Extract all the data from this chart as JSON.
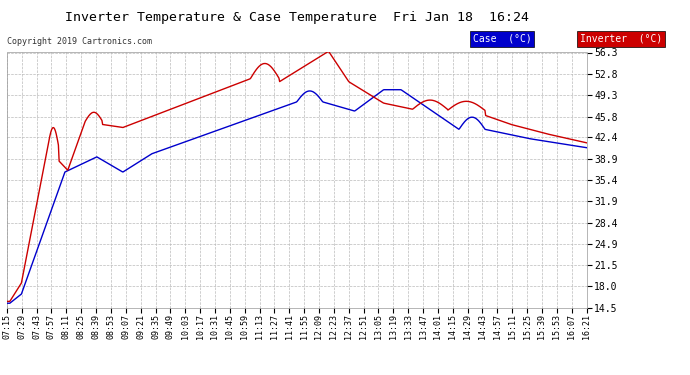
{
  "title": "Inverter Temperature & Case Temperature  Fri Jan 18  16:24",
  "copyright": "Copyright 2019 Cartronics.com",
  "background_color": "#ffffff",
  "plot_bg_color": "#ffffff",
  "grid_color": "#bbbbbb",
  "yticks": [
    14.5,
    18.0,
    21.5,
    24.9,
    28.4,
    31.9,
    35.4,
    38.9,
    42.4,
    45.8,
    49.3,
    52.8,
    56.3
  ],
  "xtick_labels": [
    "07:15",
    "07:29",
    "07:43",
    "07:57",
    "08:11",
    "08:25",
    "08:39",
    "08:53",
    "09:07",
    "09:21",
    "09:35",
    "09:49",
    "10:03",
    "10:17",
    "10:31",
    "10:45",
    "10:59",
    "11:13",
    "11:27",
    "11:41",
    "11:55",
    "12:09",
    "12:23",
    "12:37",
    "12:51",
    "13:05",
    "13:19",
    "13:33",
    "13:47",
    "14:01",
    "14:15",
    "14:29",
    "14:43",
    "14:57",
    "15:11",
    "15:25",
    "15:39",
    "15:53",
    "16:07",
    "16:21"
  ],
  "legend_case_label": "Case  (°C)",
  "legend_inverter_label": "Inverter  (°C)",
  "case_color": "#0000cc",
  "inverter_color": "#cc0000",
  "legend_case_bg": "#0000cc",
  "legend_inverter_bg": "#cc0000"
}
